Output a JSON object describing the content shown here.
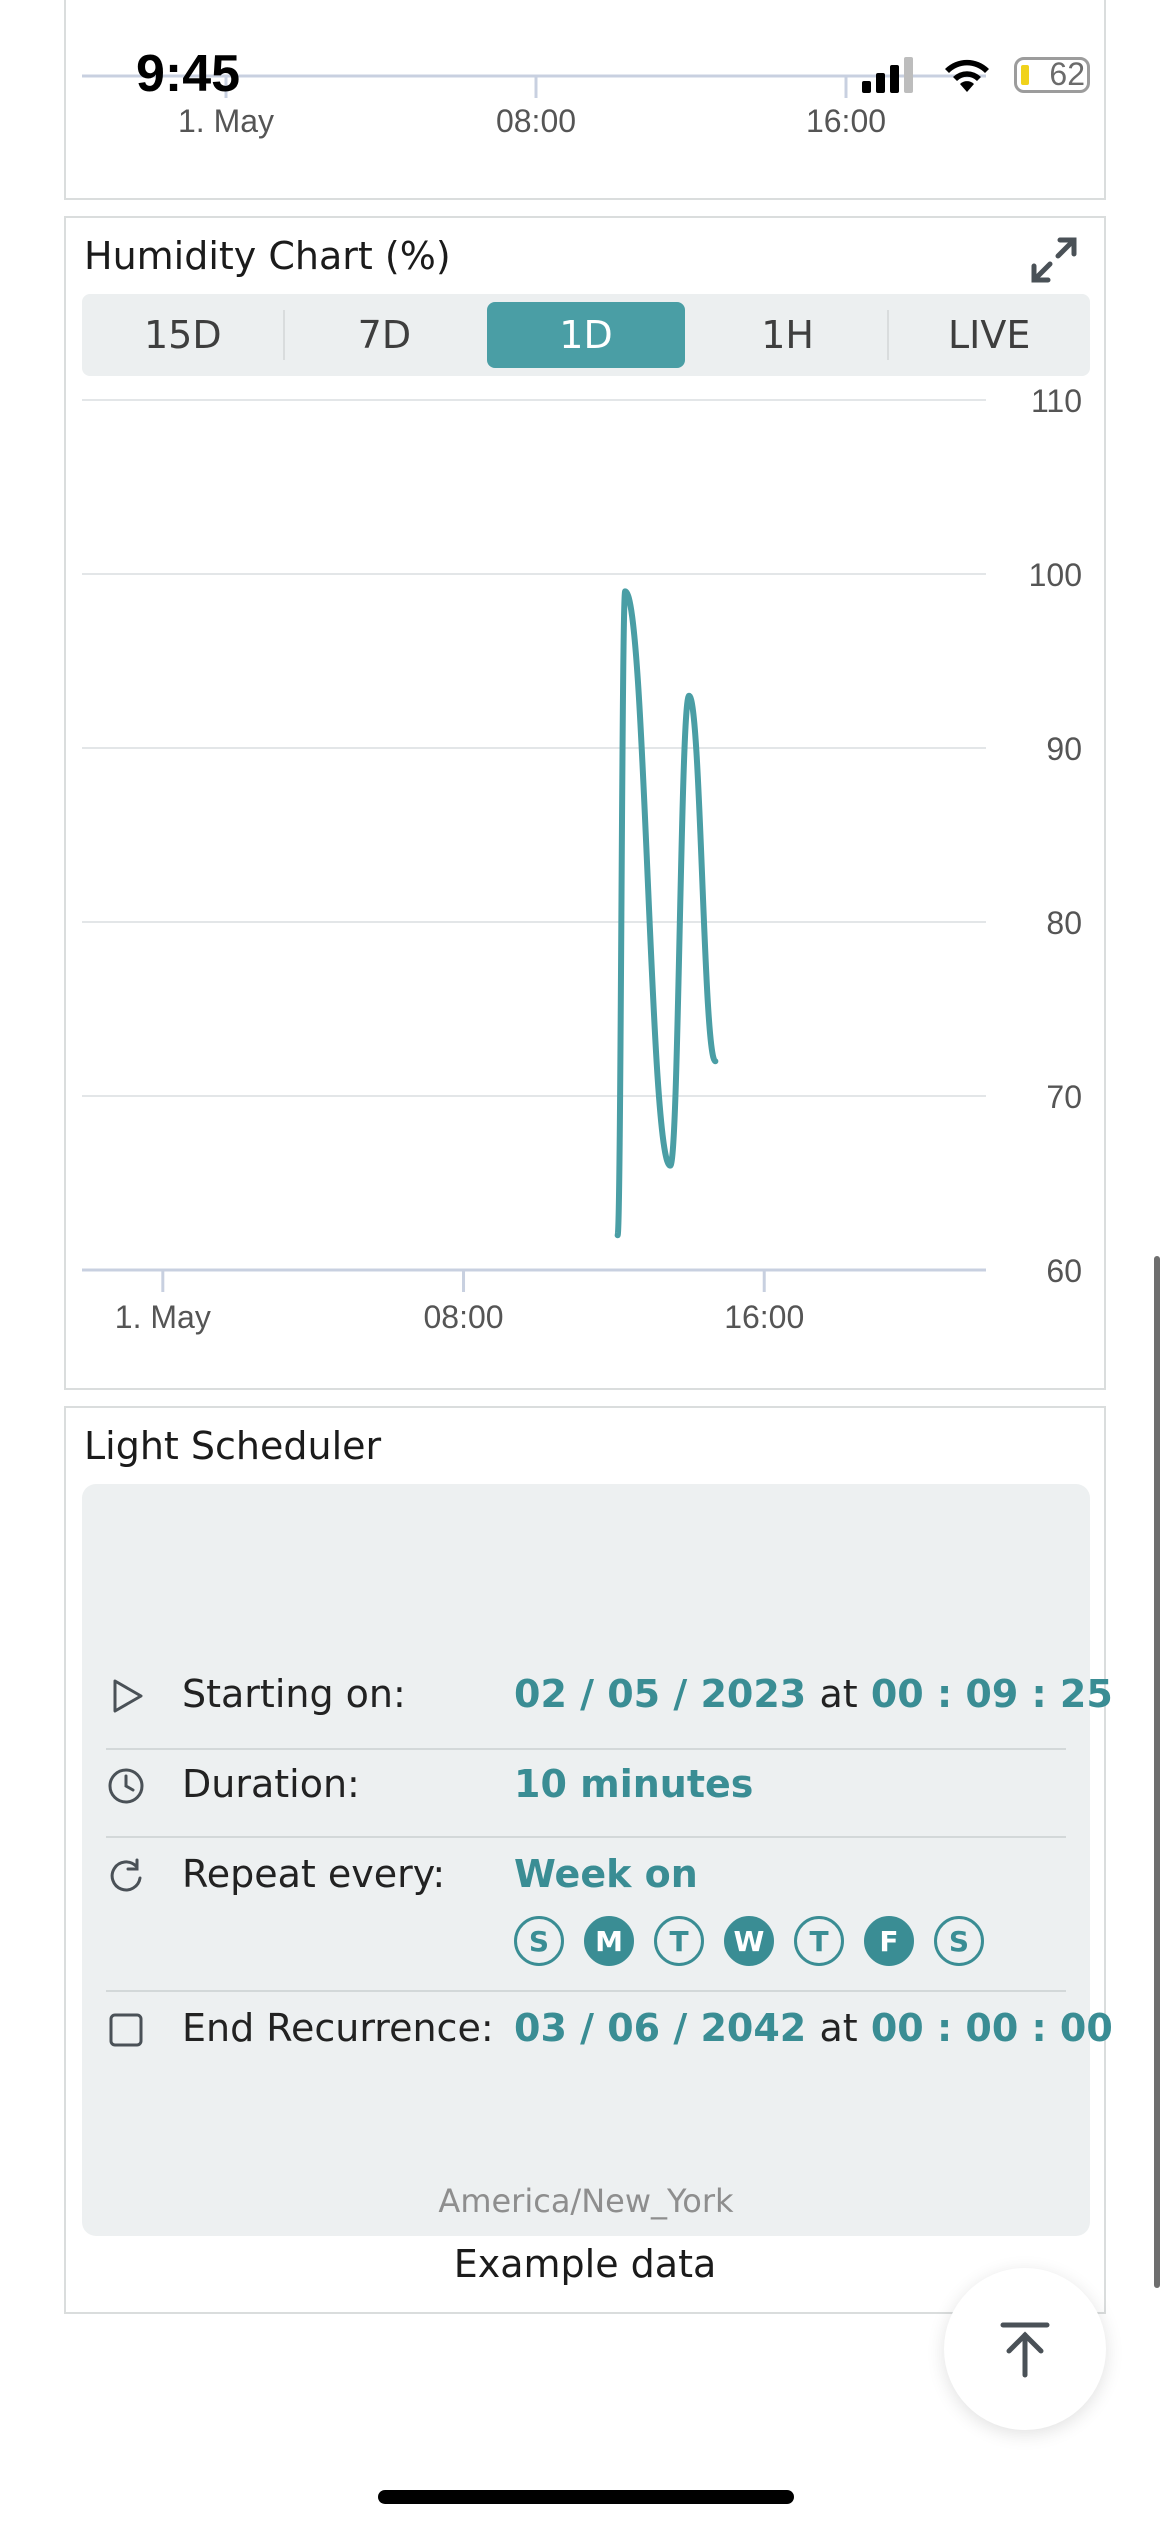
{
  "status_bar": {
    "time": "9:45",
    "battery": "62"
  },
  "top_chart": {
    "x_ticks": [
      "1. May",
      "08:00",
      "16:00"
    ]
  },
  "humidity_card": {
    "title": "Humidity Chart (%)",
    "ranges": [
      {
        "label": "15D",
        "active": false
      },
      {
        "label": "7D",
        "active": false
      },
      {
        "label": "1D",
        "active": true
      },
      {
        "label": "1H",
        "active": false
      },
      {
        "label": "LIVE",
        "active": false
      }
    ]
  },
  "chart_data": {
    "type": "line",
    "title": "Humidity Chart (%)",
    "xlabel": "",
    "ylabel": "",
    "x_ticks": [
      "1. May",
      "08:00",
      "16:00"
    ],
    "x_tick_hours": [
      0,
      8,
      16
    ],
    "xlim_hours": [
      -2.15,
      21.9
    ],
    "y_ticks": [
      60,
      70,
      80,
      90,
      100,
      110
    ],
    "ylim": [
      60,
      110
    ],
    "grid": true,
    "series": [
      {
        "color": "#4a9ea5",
        "points": [
          {
            "x": 12.1,
            "y": 62
          },
          {
            "x": 12.3,
            "y": 99
          },
          {
            "x": 13.5,
            "y": 66
          },
          {
            "x": 14.0,
            "y": 93
          },
          {
            "x": 14.7,
            "y": 72
          }
        ]
      }
    ]
  },
  "scheduler": {
    "title": "Light Scheduler",
    "starting": {
      "label": "Starting on:",
      "date": "02 / 05 / 2023",
      "at": "at",
      "time": "00 : 09 : 25"
    },
    "duration": {
      "label": "Duration:",
      "value": "10 minutes"
    },
    "repeat": {
      "label": "Repeat every:",
      "value": "Week on",
      "days": [
        {
          "letter": "S",
          "on": false
        },
        {
          "letter": "M",
          "on": true
        },
        {
          "letter": "T",
          "on": false
        },
        {
          "letter": "W",
          "on": true
        },
        {
          "letter": "T",
          "on": false
        },
        {
          "letter": "F",
          "on": true
        },
        {
          "letter": "S",
          "on": false
        }
      ]
    },
    "end": {
      "label": "End Recurrence:",
      "date": "03 / 06 / 2042",
      "at": "at",
      "time": "00 : 00 : 00"
    },
    "timezone": "America/New_York",
    "footer": "Example data"
  },
  "colors": {
    "accent": "#4a9ea5",
    "accent_text": "#3a8d94"
  },
  "icons": {
    "expand": "expand-icon",
    "play": "play-icon",
    "clock": "clock-icon",
    "repeat": "repeat-icon",
    "checkbox": "checkbox-icon",
    "scroll_top": "arrow-up-to-top-icon"
  }
}
